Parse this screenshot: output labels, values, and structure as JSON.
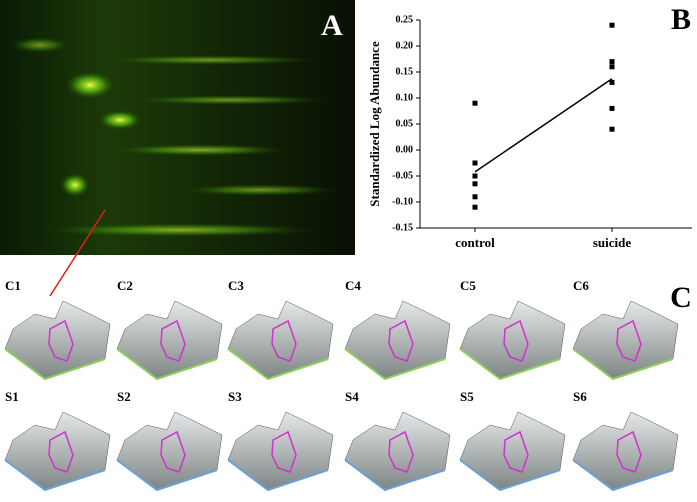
{
  "panel_labels": {
    "a": "A",
    "c": "C"
  },
  "c_labels": [
    "C1",
    "C2",
    "C3",
    "C4",
    "C5",
    "C6"
  ],
  "s_labels": [
    "S1",
    "S2",
    "S3",
    "S4",
    "S5",
    "S6"
  ],
  "chart_data": {
    "type": "scatter",
    "panel_label": "B",
    "y_label": "Standardized Log Abundance",
    "categories": [
      "control",
      "suicide"
    ],
    "values": [
      [
        0.09,
        -0.025,
        -0.05,
        -0.065,
        -0.09,
        -0.11
      ],
      [
        0.24,
        0.17,
        0.16,
        0.13,
        0.08,
        0.04
      ]
    ],
    "line_values": [
      -0.042,
      0.137
    ],
    "color": "#000000",
    "ylim": [
      -0.15,
      0.25
    ],
    "yticks": [
      -0.15,
      {
        "value": -0.1,
        "label": "-0.10"
      },
      -0.05,
      {
        "value": 0,
        "label": "0.00"
      },
      0.05,
      {
        "value": 0.1,
        "label": "0.10"
      },
      0.15,
      {
        "value": 0.2,
        "label": "0.20"
      },
      0.25
    ]
  }
}
